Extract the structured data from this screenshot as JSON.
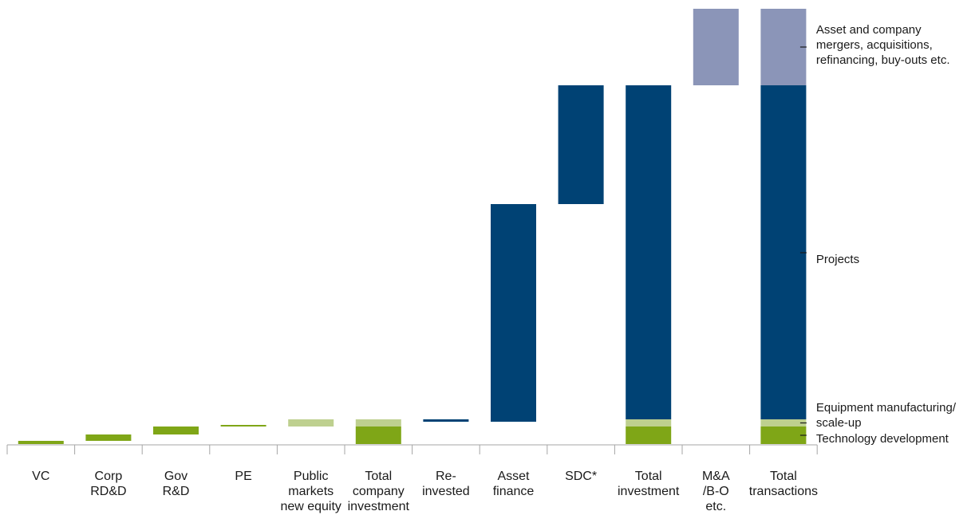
{
  "chart_data": {
    "type": "bar",
    "subtype": "waterfall",
    "title": "",
    "xlabel": "",
    "ylabel": "",
    "grid": false,
    "legend": "none",
    "categories": [
      [
        "VC"
      ],
      [
        "Corp",
        "RD&D"
      ],
      [
        "Gov",
        "R&D"
      ],
      [
        "PE"
      ],
      [
        "Public",
        "markets",
        "new equity"
      ],
      [
        "Total",
        "company",
        "investment"
      ],
      [
        "Re-",
        "invested"
      ],
      [
        "Asset",
        "finance"
      ],
      [
        "SDC*"
      ],
      [
        "Total",
        "investment"
      ],
      [
        "M&A",
        "/B-O",
        "etc."
      ],
      [
        "Total",
        "transactions"
      ]
    ],
    "ylim": [
      0,
      546
    ],
    "bars": [
      {
        "segments": [
          {
            "base": 0,
            "top": 4,
            "type": "technology"
          }
        ]
      },
      {
        "segments": [
          {
            "base": 4,
            "top": 12,
            "type": "technology"
          }
        ]
      },
      {
        "segments": [
          {
            "base": 12,
            "top": 22,
            "type": "technology"
          }
        ]
      },
      {
        "segments": [
          {
            "base": 22,
            "top": 24,
            "type": "technology"
          }
        ]
      },
      {
        "segments": [
          {
            "base": 22,
            "top": 31,
            "type": "manufacturing"
          }
        ]
      },
      {
        "segments": [
          {
            "base": 0,
            "top": 22,
            "type": "technology"
          },
          {
            "base": 22,
            "top": 31,
            "type": "manufacturing"
          }
        ]
      },
      {
        "segments": [
          {
            "base": 28,
            "top": 31,
            "type": "projects"
          }
        ]
      },
      {
        "segments": [
          {
            "base": 28,
            "top": 301,
            "type": "projects"
          }
        ]
      },
      {
        "segments": [
          {
            "base": 301,
            "top": 450,
            "type": "projects"
          }
        ]
      },
      {
        "segments": [
          {
            "base": 0,
            "top": 22,
            "type": "technology"
          },
          {
            "base": 22,
            "top": 31,
            "type": "manufacturing"
          },
          {
            "base": 31,
            "top": 450,
            "type": "projects"
          }
        ]
      },
      {
        "segments": [
          {
            "base": 450,
            "top": 546,
            "type": "mergers"
          }
        ]
      },
      {
        "segments": [
          {
            "base": 0,
            "top": 22,
            "type": "technology"
          },
          {
            "base": 22,
            "top": 31,
            "type": "manufacturing"
          },
          {
            "base": 31,
            "top": 450,
            "type": "projects"
          },
          {
            "base": 450,
            "top": 546,
            "type": "mergers"
          }
        ]
      }
    ],
    "annotations": [
      {
        "id": "mergers",
        "lines": [
          "Asset and company",
          "mergers, acquisitions,",
          "refinancing, buy-outs etc."
        ]
      },
      {
        "id": "projects",
        "lines": [
          "Projects"
        ]
      },
      {
        "id": "manufacturing",
        "lines": [
          "Equipment manufacturing/",
          "scale-up"
        ]
      },
      {
        "id": "technology",
        "lines": [
          "Technology development"
        ]
      }
    ],
    "colors": {
      "technology": "#7fa617",
      "manufacturing": "#bed08f",
      "projects": "#004274",
      "mergers": "#8b95b8",
      "axis": "#a6a6a6",
      "text": "#1a1a1a"
    }
  }
}
